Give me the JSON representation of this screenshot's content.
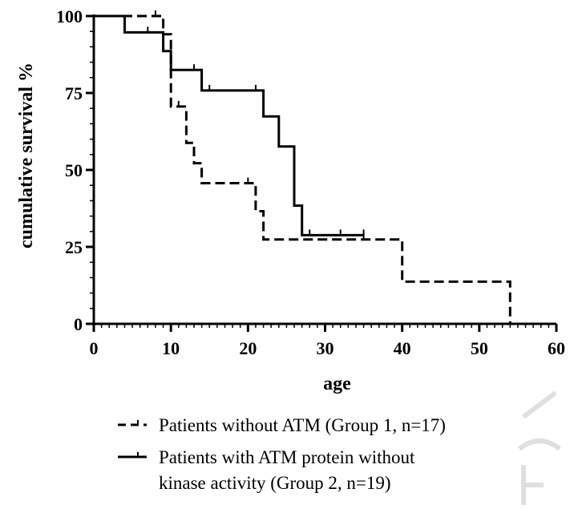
{
  "chart_data": {
    "type": "line",
    "xlabel": "age",
    "ylabel": "cumulative survival %",
    "xlim": [
      0,
      60
    ],
    "ylim": [
      0,
      100
    ],
    "x_ticks": [
      "0",
      "10",
      "20",
      "30",
      "40",
      "50",
      "60"
    ],
    "y_ticks": [
      "0",
      "25",
      "50",
      "75",
      "100"
    ],
    "grid": false,
    "legend": "bottom",
    "series": [
      {
        "name": "Patients without ATM (Group 1, n=17)",
        "style": "dashed",
        "color": "#000000",
        "x": [
          0,
          9,
          9,
          10,
          10,
          12,
          12,
          13,
          13,
          14,
          14,
          21,
          21,
          22,
          22,
          40,
          40,
          54,
          54
        ],
        "y": [
          100,
          100,
          94.1,
          94.1,
          70.6,
          70.6,
          58.8,
          58.8,
          52.2,
          52.2,
          45.7,
          45.7,
          36.6,
          36.6,
          27.4,
          27.4,
          13.7,
          13.7,
          0
        ],
        "censored": [
          {
            "x": 8,
            "y": 100
          },
          {
            "x": 11,
            "y": 70.6
          },
          {
            "x": 20,
            "y": 45.7
          },
          {
            "x": 35,
            "y": 27.4
          }
        ]
      },
      {
        "name": "Patients with ATM protein without kinase activity (Group 2, n=19)",
        "style": "solid",
        "color": "#000000",
        "x": [
          0,
          4,
          4,
          9,
          9,
          10,
          10,
          14,
          14,
          22,
          22,
          24,
          24,
          26,
          26,
          27,
          27,
          35
        ],
        "y": [
          100,
          100,
          94.7,
          94.7,
          88.6,
          88.6,
          82.5,
          82.5,
          75.8,
          75.8,
          67.4,
          67.4,
          57.6,
          57.6,
          38.4,
          38.4,
          28.8,
          28.8
        ],
        "censored": [
          {
            "x": 7,
            "y": 94.7
          },
          {
            "x": 13,
            "y": 82.5
          },
          {
            "x": 15,
            "y": 75.8
          },
          {
            "x": 21,
            "y": 75.8
          },
          {
            "x": 28,
            "y": 28.8
          },
          {
            "x": 32,
            "y": 28.8
          },
          {
            "x": 35,
            "y": 28.8
          }
        ]
      }
    ]
  },
  "legend": {
    "items": [
      {
        "lines": [
          "Patients without ATM  (Group 1, n=17)"
        ]
      },
      {
        "lines": [
          "Patients with  ATM protein without",
          "kinase activity  (Group 2, n=19)"
        ]
      }
    ]
  }
}
